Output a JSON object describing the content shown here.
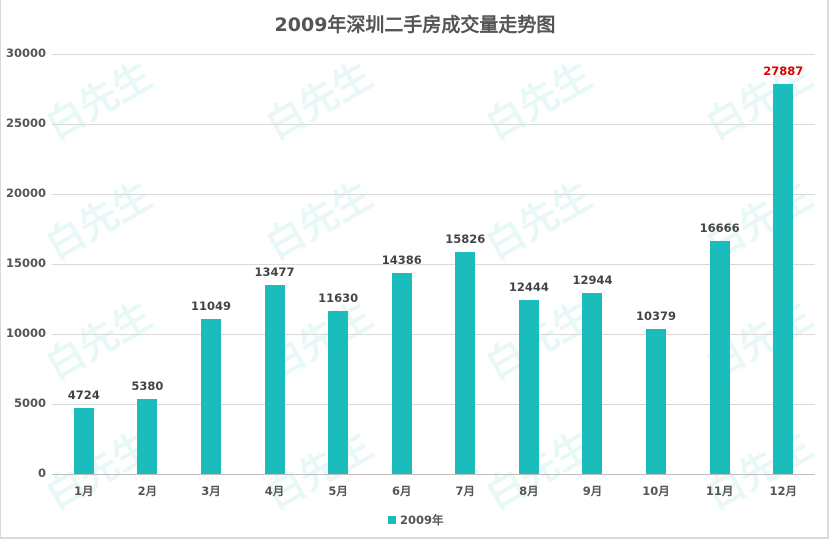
{
  "chart_data": {
    "type": "bar",
    "title": "2009年深圳二手房成交量走势图",
    "categories": [
      "1月",
      "2月",
      "3月",
      "4月",
      "5月",
      "6月",
      "7月",
      "8月",
      "9月",
      "10月",
      "11月",
      "12月"
    ],
    "series": [
      {
        "name": "2009年",
        "values": [
          4724,
          5380,
          11049,
          13477,
          11630,
          14386,
          15826,
          12444,
          12944,
          10379,
          16666,
          27887
        ],
        "color": "#1abcbc"
      }
    ],
    "value_labels": [
      "4724",
      "5380",
      "11049",
      "13477",
      "11630",
      "14386",
      "15826",
      "12444",
      "12944",
      "10379",
      "16666",
      "27887"
    ],
    "highlight_label_color": "#e00000",
    "xlabel": "",
    "ylabel": "",
    "ylim": [
      0,
      30000
    ],
    "yticks": [
      "0",
      "5000",
      "10000",
      "15000",
      "20000",
      "25000",
      "30000"
    ],
    "grid": true,
    "legend_position": "bottom"
  },
  "legend": {
    "label": "2009年"
  },
  "watermark": {
    "text": "白先生"
  }
}
